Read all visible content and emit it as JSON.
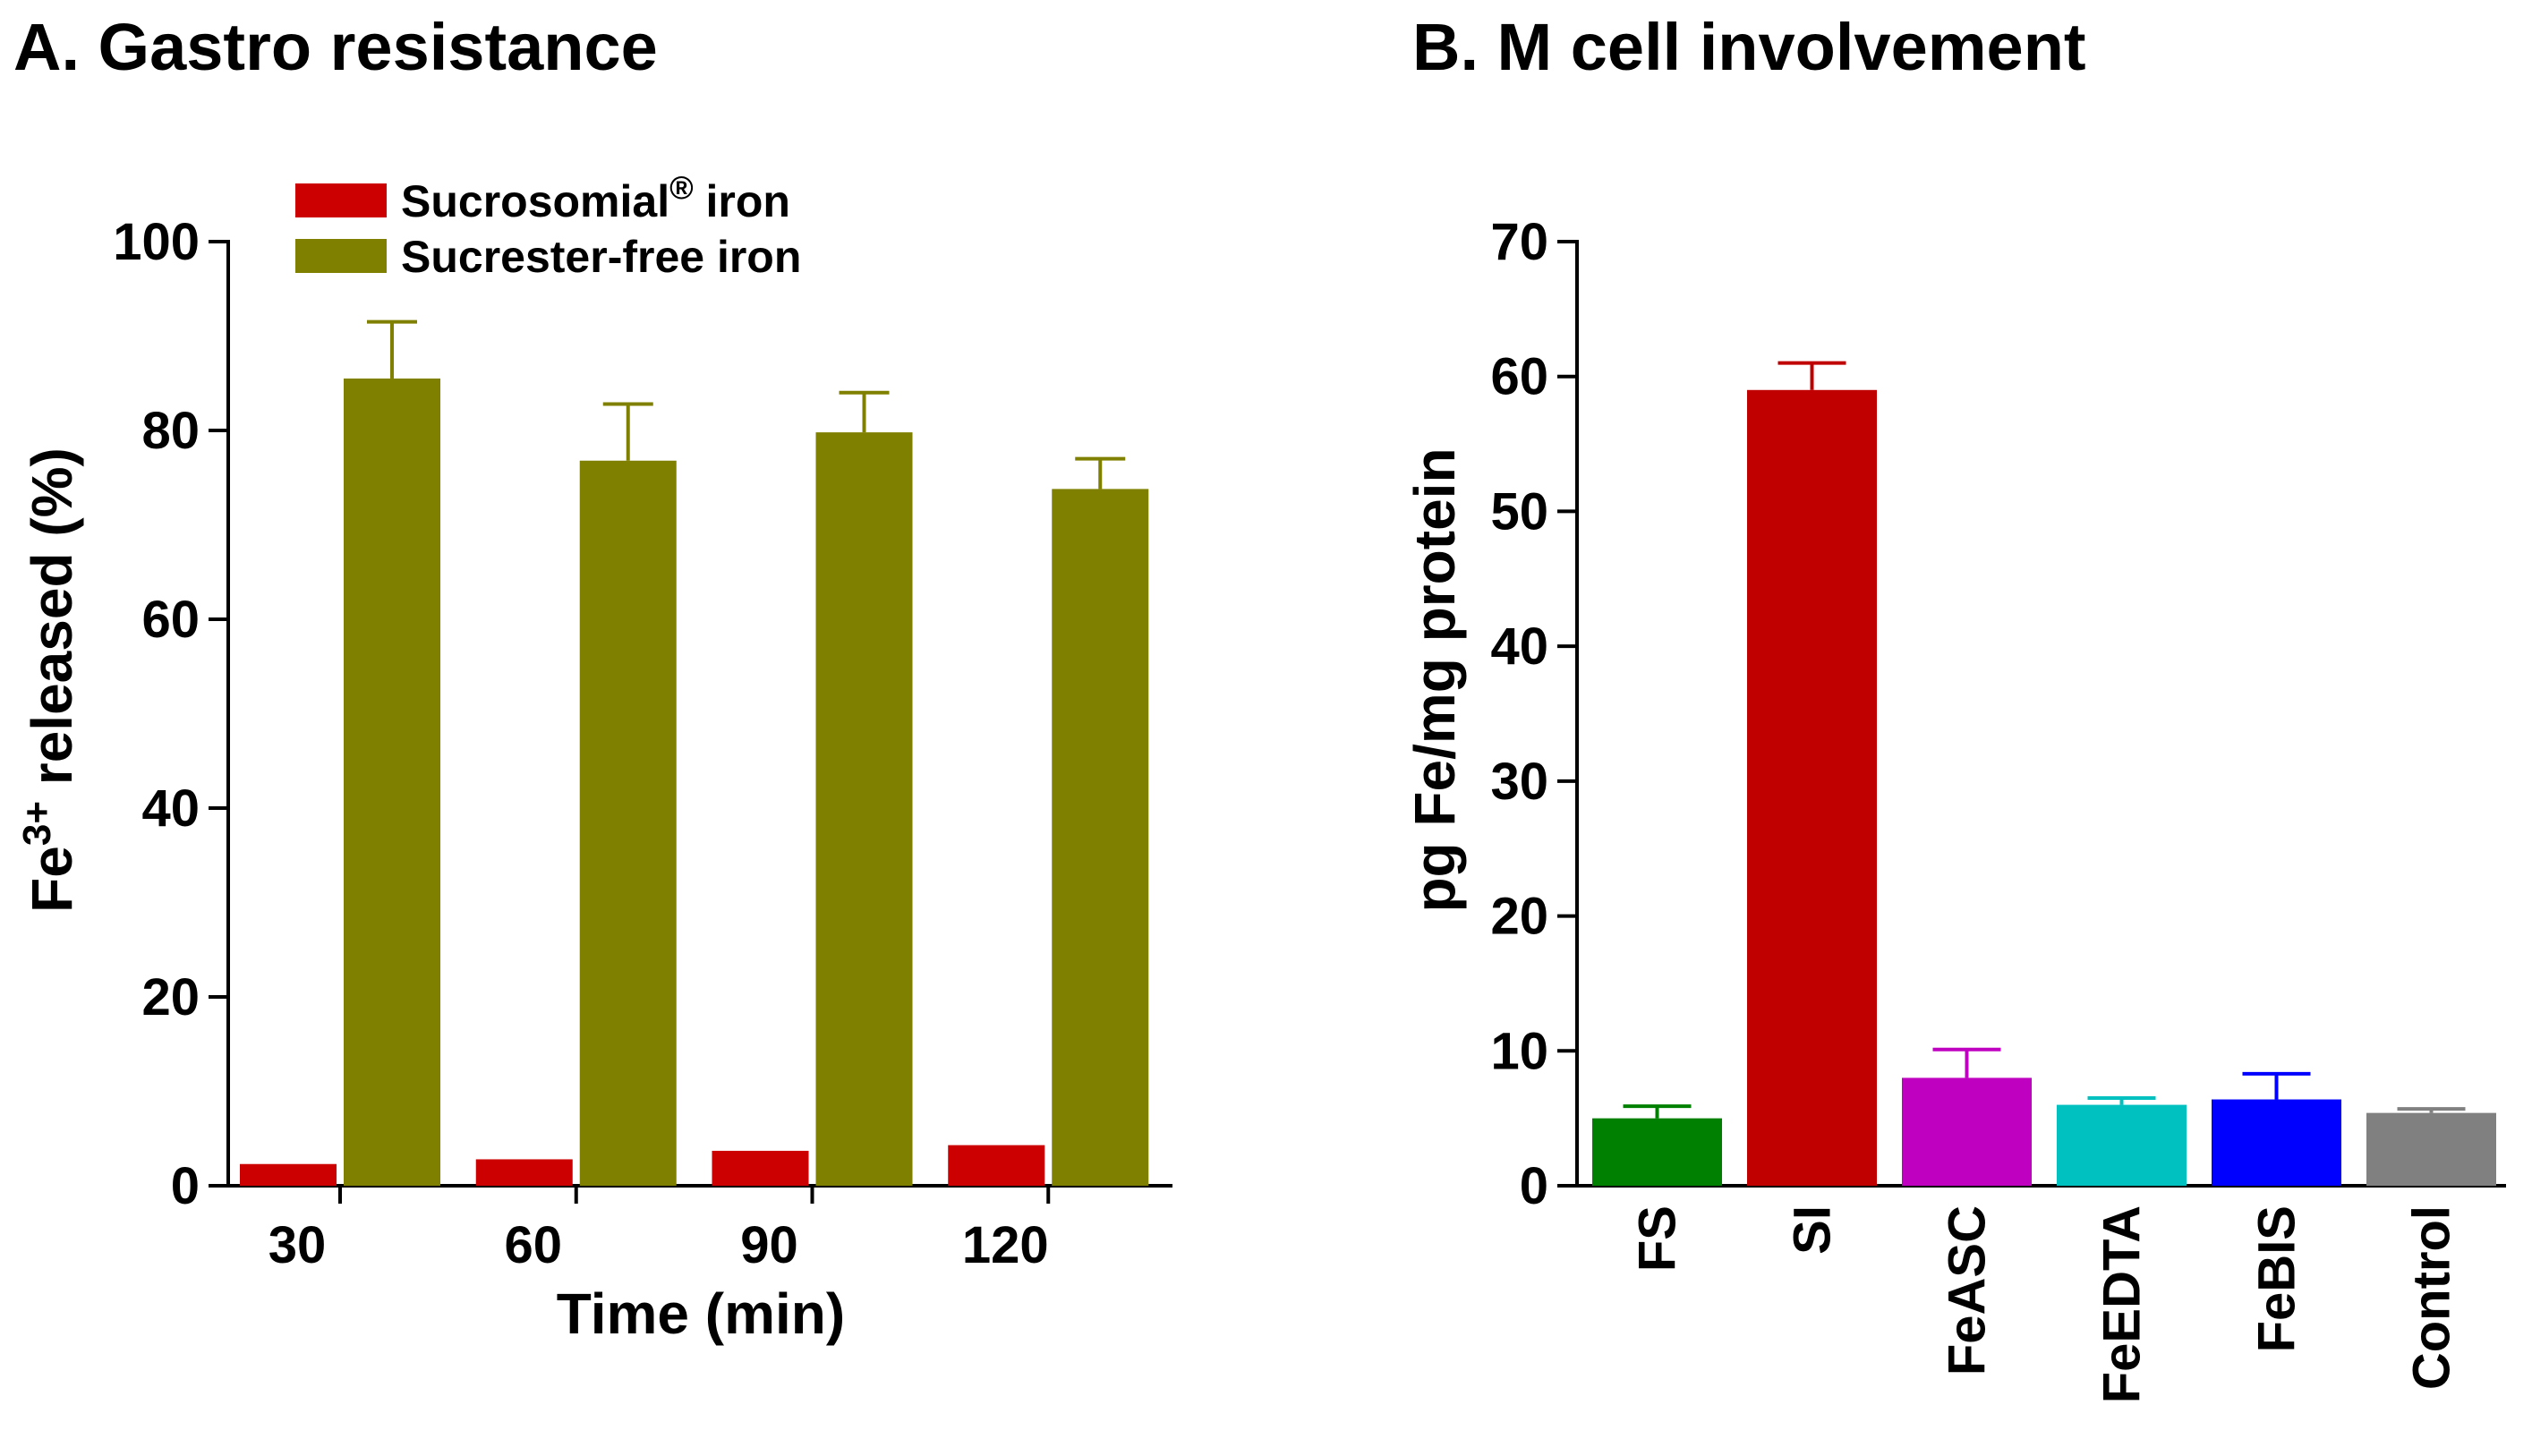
{
  "panels": {
    "a": {
      "title": "A. Gastro resistance"
    },
    "b": {
      "title": "B. M cell involvement"
    }
  },
  "chart_data": [
    {
      "type": "bar",
      "title": "A. Gastro resistance",
      "xlabel": "Time (min)",
      "ylabel_main": "Fe",
      "ylabel_sup": "3+",
      "ylabel_rest": " released (%)",
      "ylim": [
        0,
        100
      ],
      "yticks": [
        0,
        20,
        40,
        60,
        80,
        100
      ],
      "categories": [
        "30",
        "60",
        "90",
        "120"
      ],
      "legend_position": "top-left",
      "series": [
        {
          "name": "Sucrosomial",
          "name_sup": "®",
          "name_rest": " iron",
          "color": "#cc0000",
          "values": [
            2.3,
            2.8,
            3.7,
            4.3
          ],
          "errors": [
            0,
            0,
            0,
            0
          ]
        },
        {
          "name": "Sucrester-free iron",
          "name_sup": "",
          "name_rest": "",
          "color": "#808000",
          "values": [
            85.5,
            76.8,
            79.8,
            73.8
          ],
          "errors": [
            6.0,
            6.0,
            4.2,
            3.2
          ]
        }
      ]
    },
    {
      "type": "bar",
      "title": "B. M cell involvement",
      "ylabel": "pg Fe/mg protein",
      "ylim": [
        0,
        70
      ],
      "yticks": [
        0,
        10,
        20,
        30,
        40,
        50,
        60,
        70
      ],
      "categories": [
        "FS",
        "SI",
        "FeASC",
        "FeEDTA",
        "FeBIS",
        "Control"
      ],
      "values": [
        5.0,
        59.0,
        8.0,
        6.0,
        6.4,
        5.4
      ],
      "errors": [
        0.9,
        2.0,
        2.1,
        0.5,
        1.9,
        0.3
      ],
      "colors": [
        "#008000",
        "#c00000",
        "#c000c0",
        "#00c0c0",
        "#0000ff",
        "#808080"
      ]
    }
  ]
}
